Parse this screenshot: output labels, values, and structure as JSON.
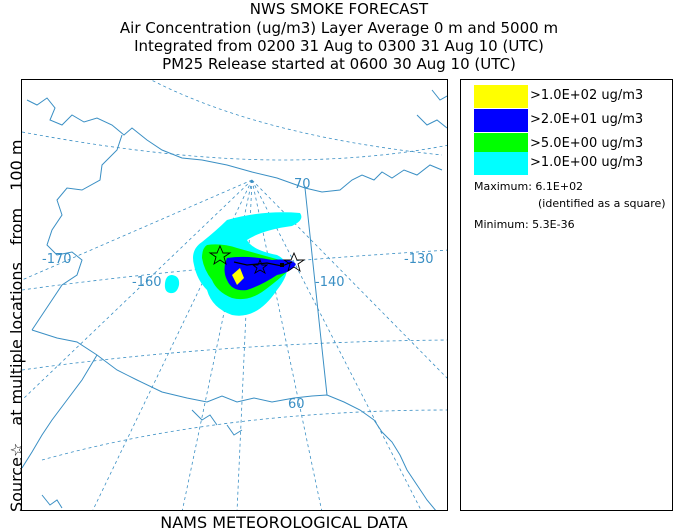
{
  "header": {
    "title": "NWS SMOKE FORECAST",
    "line2": "Air Concentration (ug/m3) Layer Average    0 m and  5000 m",
    "line3": "Integrated from 0200 31 Aug to 0300 31 Aug 10 (UTC)",
    "line4": "PM25 Release started at 0600 30 Aug 10 (UTC)"
  },
  "side_label": {
    "part1": "Source☆",
    "part2": "at multiple locations",
    "part3": "from",
    "part4": "100 m"
  },
  "map": {
    "longitude_labels": [
      "-170",
      "-160",
      "-140",
      "-130"
    ],
    "latitude_labels": [
      "70",
      "60"
    ],
    "colors": {
      "coast": "#3a8fc4",
      "grid": "#3a8fc4",
      "border": "#3a8fc4"
    }
  },
  "legend": {
    "items": [
      {
        "label": ">1.0E+02 ug/m3",
        "color": "#ffff00"
      },
      {
        "label": ">2.0E+01 ug/m3",
        "color": "#0000ff"
      },
      {
        "label": ">5.0E+00 ug/m3",
        "color": "#00ff00"
      },
      {
        "label": ">1.0E+00 ug/m3",
        "color": "#00ffff"
      }
    ],
    "maximum": "Maximum: 6.1E+02",
    "maximum_note": "(identified as a square)",
    "minimum": "Minimum: 5.3E-36"
  },
  "footer": "NAMS METEOROLOGICAL DATA"
}
